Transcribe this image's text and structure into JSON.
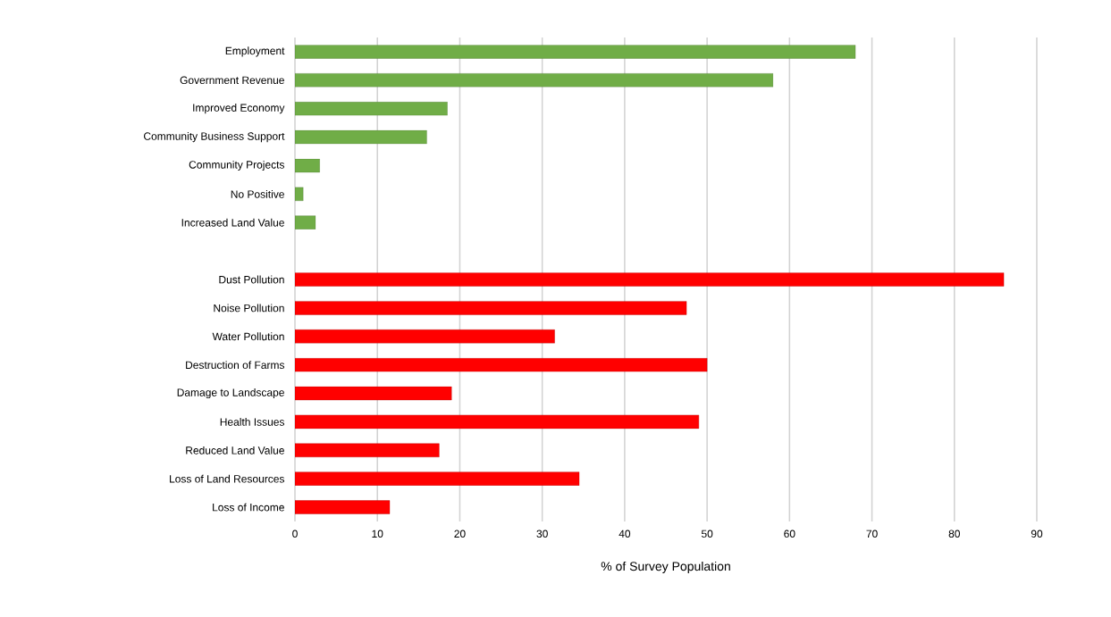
{
  "chart_data": {
    "type": "bar",
    "orientation": "horizontal",
    "xlabel": "% of Survey Population",
    "categories": [
      "Employment",
      "Government Revenue",
      "Improved Economy",
      "Community Business Support",
      "Community Projects",
      "No Positive",
      "Increased Land Value",
      null,
      "Dust Pollution",
      "Noise Pollution",
      "Water Pollution",
      "Destruction of Farms",
      "Damage to Landscape",
      "Health Issues",
      "Reduced Land Value",
      "Loss of Land Resources",
      "Loss of Income"
    ],
    "values": [
      68,
      58,
      18.5,
      16,
      3,
      1,
      2.5,
      null,
      86,
      47.5,
      31.5,
      50,
      19,
      49,
      17.5,
      34.5,
      11.5
    ],
    "colors": [
      "#70ad47",
      "#70ad47",
      "#70ad47",
      "#70ad47",
      "#70ad47",
      "#70ad47",
      "#70ad47",
      "#70ad47",
      "#ff0000",
      "#ff0000",
      "#ff0000",
      "#ff0000",
      "#ff0000",
      "#ff0000",
      "#ff0000",
      "#ff0000",
      "#ff0000"
    ],
    "xlim": [
      0,
      90
    ],
    "xticks": [
      0,
      10,
      20,
      30,
      40,
      50,
      60,
      70,
      80,
      90
    ],
    "grid": "x"
  }
}
